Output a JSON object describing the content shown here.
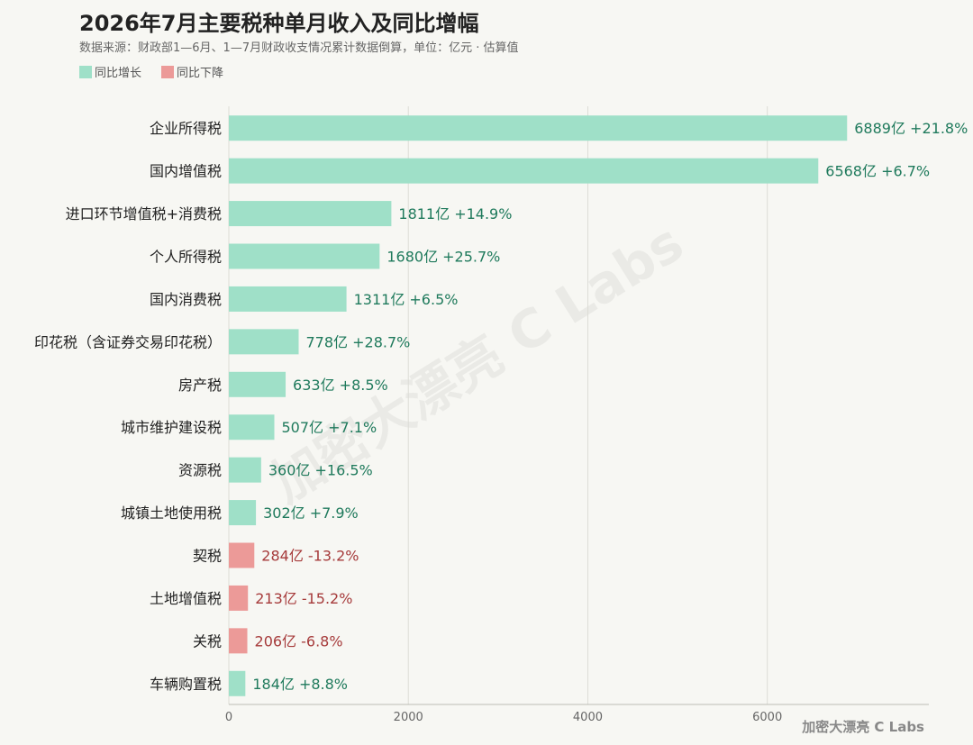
{
  "title": "2026年7月主要税种单月收入及同比增幅",
  "subtitle": "数据来源：财政部1—6月、1—7月财政收支情况累计数据倒算，单位：亿元 · 估算值",
  "legend": [
    {
      "label": "同比增长",
      "color": "#9fe0c8"
    },
    {
      "label": "同比下降",
      "color": "#ec9a98"
    }
  ],
  "watermark": "加密大漂亮 C Labs",
  "brand": "加密大漂亮 C Labs",
  "colors": {
    "increase_bar": "#9fe0c8",
    "decrease_bar": "#ec9a98",
    "increase_text": "#1f7a5c",
    "decrease_text": "#a63b3b",
    "grid": "#dcdcd6",
    "axis": "#bdbdb5"
  },
  "chart_data": {
    "type": "bar",
    "orientation": "horizontal",
    "title": "2026年7月主要税种单月收入及同比增幅",
    "xlim": [
      0,
      7800
    ],
    "xticks": [
      0,
      2000,
      4000,
      6000
    ],
    "grid": true,
    "legend_position": "top-left",
    "unit": "亿",
    "categories": [
      "企业所得税",
      "国内增值税",
      "进口环节增值税+消费税",
      "个人所得税",
      "国内消费税",
      "印花税（含证券交易印花税）",
      "房产税",
      "城市维护建设税",
      "资源税",
      "城镇土地使用税",
      "契税",
      "土地增值税",
      "关税",
      "车辆购置税"
    ],
    "values": [
      6889,
      6568,
      1811,
      1680,
      1311,
      778,
      633,
      507,
      360,
      302,
      284,
      213,
      206,
      184
    ],
    "yoy": [
      "+21.8%",
      "+6.7%",
      "+14.9%",
      "+25.7%",
      "+6.5%",
      "+28.7%",
      "+8.5%",
      "+7.1%",
      "+16.5%",
      "+7.9%",
      "-13.2%",
      "-15.2%",
      "-6.8%",
      "+8.8%"
    ],
    "direction": [
      "up",
      "up",
      "up",
      "up",
      "up",
      "up",
      "up",
      "up",
      "up",
      "up",
      "down",
      "down",
      "down",
      "up"
    ]
  }
}
